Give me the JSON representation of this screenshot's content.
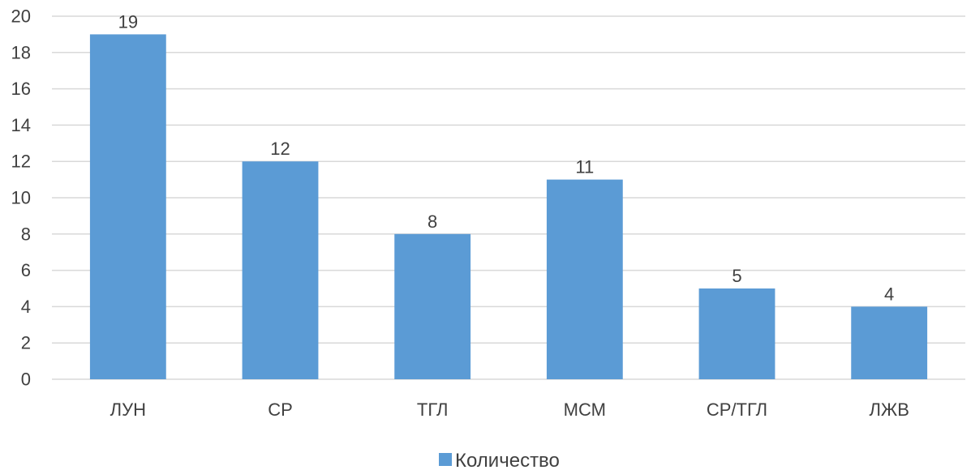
{
  "chart_data": {
    "type": "bar",
    "categories": [
      "ЛУН",
      "СР",
      "ТГЛ",
      "МСМ",
      "СР/ТГЛ",
      "ЛЖВ"
    ],
    "series": [
      {
        "name": "Количество",
        "values": [
          19,
          12,
          8,
          11,
          5,
          4
        ],
        "color": "#5b9bd5"
      }
    ],
    "ylim": [
      0,
      20
    ],
    "yticks": [
      0,
      2,
      4,
      6,
      8,
      10,
      12,
      14,
      16,
      18,
      20
    ],
    "grid": true,
    "legend": "bottom",
    "data_labels": true,
    "colors": {
      "gridline": "#d9d9d9",
      "text": "#404040"
    }
  }
}
